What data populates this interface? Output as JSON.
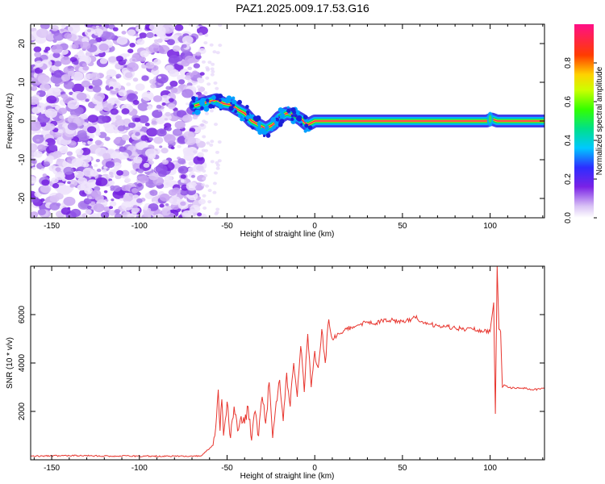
{
  "title": "PAZ1.2025.009.17.53.G16",
  "chart_data": [
    {
      "type": "heatmap",
      "xlabel": "Height of straight line (km)",
      "ylabel": "Frequency (Hz)",
      "xlim": [
        -162,
        131
      ],
      "ylim": [
        -25,
        25
      ],
      "xticks": [
        -150,
        -100,
        -50,
        0,
        50,
        100
      ],
      "yticks": [
        -20,
        -10,
        0,
        10,
        20
      ],
      "noise_region_x": [
        -162,
        -64
      ],
      "ridge": {
        "x": [
          -68,
          -64,
          -60,
          -56,
          -52,
          -48,
          -44,
          -40,
          -36,
          -32,
          -28,
          -24,
          -20,
          -16,
          -12,
          -8,
          -4,
          0,
          5,
          10,
          20,
          40,
          60,
          80,
          98,
          101,
          104,
          110,
          131
        ],
        "y": [
          4,
          4.5,
          5,
          5.5,
          4.5,
          4.2,
          3,
          2,
          0,
          -1,
          -2,
          -1,
          1,
          2,
          1.5,
          0.5,
          -1,
          0,
          0,
          0,
          0,
          0,
          0,
          0,
          0,
          0.5,
          0,
          0,
          0
        ]
      },
      "colorbar": {
        "label": "Normalized spectral amplitude",
        "range": [
          0.0,
          1.0
        ],
        "ticks": [
          0.0,
          0.2,
          0.4,
          0.6,
          0.8
        ],
        "tick_labels": [
          "0.0",
          "0.2",
          "0.4",
          "0.6",
          "0.8"
        ]
      },
      "grid": false
    },
    {
      "type": "line",
      "xlabel": "Height of straight line (km)",
      "ylabel": "SNR (10 * v/v)",
      "xlim": [
        -162,
        131
      ],
      "ylim": [
        0,
        8000
      ],
      "xticks": [
        -150,
        -100,
        -50,
        0,
        50,
        100
      ],
      "yticks": [
        2000,
        4000,
        6000
      ],
      "color": "#e8362f",
      "x": [
        -162,
        -140,
        -120,
        -100,
        -80,
        -65,
        -58,
        -56,
        -55,
        -54,
        -53,
        -52,
        -50,
        -48,
        -46,
        -44,
        -42,
        -40,
        -38,
        -36,
        -34,
        -32,
        -30,
        -28,
        -26,
        -24,
        -22,
        -20,
        -18,
        -16,
        -14,
        -12,
        -10,
        -8,
        -6,
        -4,
        -2,
        0,
        2,
        4,
        6,
        8,
        10,
        14,
        18,
        22,
        26,
        30,
        35,
        40,
        45,
        50,
        55,
        58,
        60,
        65,
        70,
        75,
        80,
        85,
        90,
        95,
        100,
        102,
        103,
        104,
        105,
        106,
        107,
        108,
        110,
        115,
        120,
        125,
        131
      ],
      "y": [
        150,
        170,
        160,
        150,
        150,
        150,
        600,
        1800,
        2900,
        1200,
        2500,
        1000,
        2400,
        900,
        2200,
        1200,
        1800,
        1500,
        2200,
        800,
        2000,
        1000,
        2600,
        1500,
        3200,
        900,
        2400,
        3300,
        1600,
        3600,
        2200,
        4000,
        2600,
        4700,
        2800,
        5200,
        3000,
        4500,
        3800,
        5400,
        4000,
        5800,
        5000,
        5200,
        5400,
        5500,
        5600,
        5700,
        5650,
        5800,
        5750,
        5700,
        5800,
        5950,
        5700,
        5600,
        5550,
        5500,
        5450,
        5400,
        5400,
        5350,
        5300,
        6500,
        1900,
        8000,
        5400,
        5300,
        3000,
        3100,
        3000,
        2950,
        2950,
        2900,
        2950
      ]
    }
  ]
}
